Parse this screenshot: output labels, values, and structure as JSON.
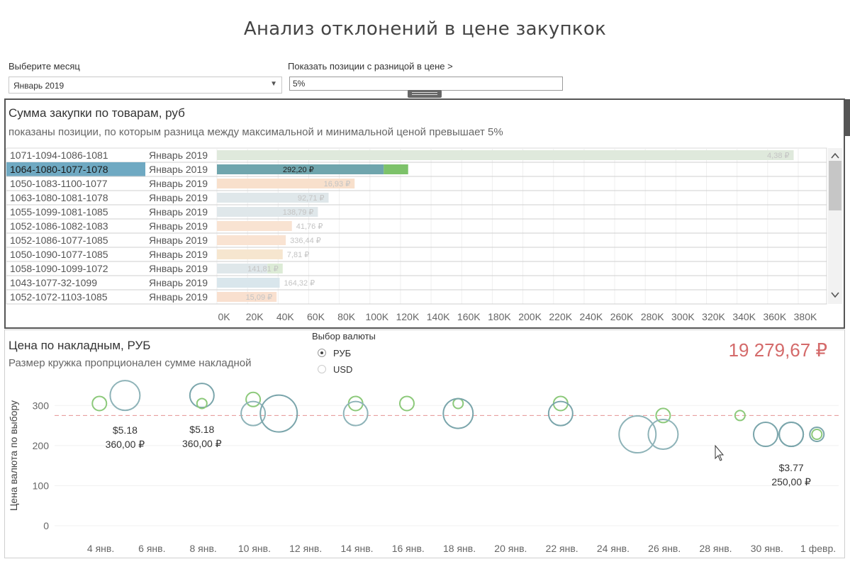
{
  "title": "Анализ отклонений в цене закупкок",
  "filters": {
    "month_label": "Выберите месяц",
    "month_value": "Январь 2019",
    "diff_label": "Показать позиции с разницой в цене >",
    "diff_value": "5%"
  },
  "top_panel": {
    "title": "Сумма закупки по товарам, руб",
    "subtitle": "показаны позиции, по которым разница между максимальной и минимальной ценой превышает 5%"
  },
  "bottom_panel": {
    "title": "Цена по накладным, РУБ",
    "subtitle": "Размер кружка пропрционален сумме накладной",
    "currency_label": "Выбор валюты",
    "currency_options": [
      "РУБ",
      "USD"
    ],
    "currency_selected": "РУБ",
    "total": "19 279,67 ₽"
  },
  "chart_data": [
    {
      "type": "bar",
      "orientation": "horizontal",
      "ylim": [
        0,
        380000
      ],
      "x_ticks": [
        "0K",
        "20K",
        "40K",
        "60K",
        "80K",
        "100K",
        "120K",
        "140K",
        "160K",
        "180K",
        "200K",
        "220K",
        "240K",
        "260K",
        "280K",
        "300K",
        "320K",
        "340K",
        "360K",
        "380K"
      ],
      "rows": [
        {
          "id": "1071-1094-1086-1081",
          "month": "Январь 2019",
          "value": 377000,
          "label": "4,38 ₽",
          "label_pos": "inside",
          "selected": false,
          "segments": [
            {
              "value": 377000,
              "color": "#dfe9dc"
            }
          ]
        },
        {
          "id": "1064-1080-1077-1078",
          "month": "Январь 2019",
          "value": 125000,
          "label": "292,20 ₽",
          "label_pos": "inside",
          "selected": true,
          "segments": [
            {
              "value": 109000,
              "color": "#6fa5ad"
            },
            {
              "value": 16000,
              "color": "#7dc26a"
            }
          ]
        },
        {
          "id": "1050-1083-1100-1077",
          "month": "Январь 2019",
          "value": 90000,
          "label": "16,93 ₽",
          "label_pos": "inside",
          "selected": false,
          "segments": [
            {
              "value": 90000,
              "color": "#f8e0cc"
            }
          ]
        },
        {
          "id": "1063-1080-1081-1078",
          "month": "Январь 2019",
          "value": 73000,
          "label": "92,71 ₽",
          "label_pos": "inside",
          "selected": false,
          "segments": [
            {
              "value": 73000,
              "color": "#dfe7ea"
            }
          ]
        },
        {
          "id": "1055-1099-1081-1085",
          "month": "Январь 2019",
          "value": 66000,
          "label": "138,79 ₽",
          "label_pos": "inside",
          "selected": false,
          "segments": [
            {
              "value": 66000,
              "color": "#dfe7ea"
            }
          ]
        },
        {
          "id": "1052-1086-1082-1083",
          "month": "Январь 2019",
          "value": 49000,
          "label": "41,76 ₽",
          "label_pos": "outside",
          "selected": false,
          "segments": [
            {
              "value": 49000,
              "color": "#f9e3d2"
            }
          ]
        },
        {
          "id": "1052-1086-1077-1085",
          "month": "Январь 2019",
          "value": 45000,
          "label": "336,44 ₽",
          "label_pos": "outside",
          "selected": false,
          "segments": [
            {
              "value": 45000,
              "color": "#f9e3d2"
            }
          ]
        },
        {
          "id": "1050-1090-1077-1085",
          "month": "Январь 2019",
          "value": 43000,
          "label": "7,81 ₽",
          "label_pos": "outside",
          "selected": false,
          "segments": [
            {
              "value": 43000,
              "color": "#f6e6cf"
            }
          ]
        },
        {
          "id": "1058-1090-1099-1072",
          "month": "Январь 2019",
          "value": 43000,
          "label": "141,81 ₽",
          "label_pos": "inside",
          "selected": false,
          "segments": [
            {
              "value": 33000,
              "color": "#dfe7ea"
            },
            {
              "value": 10000,
              "color": "#dcebd6"
            }
          ]
        },
        {
          "id": "1043-1077-32-1099",
          "month": "Январь 2019",
          "value": 41000,
          "label": "164,32 ₽",
          "label_pos": "outside",
          "selected": false,
          "segments": [
            {
              "value": 41000,
              "color": "#d9e6ec"
            }
          ]
        },
        {
          "id": "1052-1072-1103-1085",
          "month": "Январь 2019",
          "value": 39000,
          "label": "15,09 ₽",
          "label_pos": "inside",
          "selected": false,
          "segments": [
            {
              "value": 39000,
              "color": "#f9e0cf"
            }
          ]
        }
      ]
    },
    {
      "type": "scatter",
      "ylabel": "Цена валюта по выбору",
      "ylim": [
        0,
        350
      ],
      "y_ticks": [
        0,
        100,
        200,
        300
      ],
      "x_ticks": [
        "4 янв.",
        "6 янв.",
        "8 янв.",
        "10 янв.",
        "12 янв.",
        "14 янв.",
        "16 янв.",
        "18 янв.",
        "20 янв.",
        "22 янв.",
        "24 янв.",
        "26 янв.",
        "28 янв.",
        "30 янв.",
        "1 февр."
      ],
      "x_range_days": [
        2.2,
        32.8
      ],
      "reference_line": 275,
      "points": [
        {
          "day": 3.95,
          "y": 305,
          "size": "small",
          "color": "#8cc97a"
        },
        {
          "day": 4.95,
          "y": 325,
          "size": "large",
          "color": "#8eb3b8"
        },
        {
          "day": 7.95,
          "y": 325,
          "size": "medium",
          "color": "#7aa5ab"
        },
        {
          "day": 7.95,
          "y": 305,
          "size": "tiny",
          "color": "#8cc97a"
        },
        {
          "day": 9.95,
          "y": 315,
          "size": "small",
          "color": "#8cc97a"
        },
        {
          "day": 9.95,
          "y": 280,
          "size": "medium",
          "color": "#8eb3b8"
        },
        {
          "day": 10.95,
          "y": 280,
          "size": "xlarge",
          "color": "#7aa5ab"
        },
        {
          "day": 13.95,
          "y": 305,
          "size": "small",
          "color": "#8cc97a"
        },
        {
          "day": 13.95,
          "y": 280,
          "size": "medium",
          "color": "#8eb3b8"
        },
        {
          "day": 15.95,
          "y": 305,
          "size": "small",
          "color": "#8cc97a"
        },
        {
          "day": 17.95,
          "y": 305,
          "size": "tiny",
          "color": "#8cc97a"
        },
        {
          "day": 17.95,
          "y": 280,
          "size": "large",
          "color": "#7aa5ab"
        },
        {
          "day": 21.95,
          "y": 305,
          "size": "small",
          "color": "#8cc97a"
        },
        {
          "day": 21.95,
          "y": 280,
          "size": "medium",
          "color": "#7aa5ab"
        },
        {
          "day": 24.95,
          "y": 228,
          "size": "xlarge",
          "color": "#8eb3b8"
        },
        {
          "day": 25.95,
          "y": 275,
          "size": "small",
          "color": "#8cc97a"
        },
        {
          "day": 25.95,
          "y": 228,
          "size": "large",
          "color": "#8eb3b8"
        },
        {
          "day": 28.95,
          "y": 275,
          "size": "tiny",
          "color": "#8cc97a"
        },
        {
          "day": 29.95,
          "y": 228,
          "size": "medium",
          "color": "#7aa5ab"
        },
        {
          "day": 30.95,
          "y": 228,
          "size": "medium",
          "color": "#6f9ea5"
        },
        {
          "day": 30.95,
          "y": 228,
          "size": "medium",
          "color": "#7aa5ab"
        },
        {
          "day": 31.95,
          "y": 228,
          "size": "small",
          "color": "#7aa5ab"
        },
        {
          "day": 31.95,
          "y": 228,
          "size": "tiny",
          "color": "#8cc97a"
        }
      ],
      "annotations": [
        {
          "day": 4.95,
          "y": 230,
          "lines": [
            "$5.18",
            "360,00 ₽"
          ]
        },
        {
          "day": 7.95,
          "y": 232,
          "lines": [
            "$5.18",
            "360,00 ₽"
          ]
        },
        {
          "day": 30.95,
          "y": 136,
          "lines": [
            "$3.77",
            "250,00 ₽"
          ]
        }
      ]
    }
  ]
}
